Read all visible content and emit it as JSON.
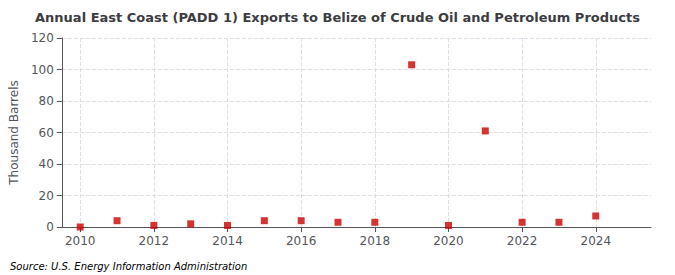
{
  "chart_data": {
    "type": "scatter",
    "title": "Annual East Coast (PADD 1) Exports to Belize of Crude Oil and Petroleum Products",
    "ylabel": "Thousand Barrels",
    "annotations": [
      "Source: U.S. Energy Information Administration"
    ],
    "x": [
      2010,
      2011,
      2012,
      2013,
      2014,
      2015,
      2016,
      2017,
      2018,
      2019,
      2020,
      2021,
      2022,
      2023,
      2024
    ],
    "values": [
      0,
      4,
      1,
      2,
      1,
      4,
      4,
      3,
      3,
      103,
      1,
      61,
      3,
      3,
      7
    ],
    "color": "#cc0000",
    "marker": "square",
    "xlim": [
      2009.5,
      2025.5
    ],
    "xticks": [
      2010,
      2012,
      2014,
      2016,
      2018,
      2020,
      2022,
      2024
    ],
    "ylim": [
      0,
      120
    ],
    "yticks": [
      0,
      20,
      40,
      60,
      80,
      100,
      120
    ],
    "grid": true
  }
}
